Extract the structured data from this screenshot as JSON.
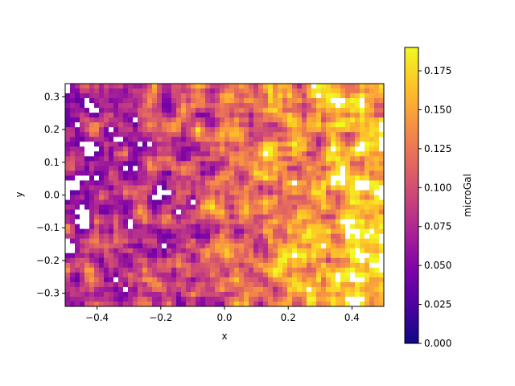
{
  "chart_data": {
    "type": "heatmap",
    "title": "",
    "xlabel": "x",
    "ylabel": "y",
    "xlim": [
      -0.5,
      0.5
    ],
    "ylim": [
      -0.34,
      0.34
    ],
    "x_ticks": [
      -0.4,
      -0.2,
      0.0,
      0.2,
      0.4
    ],
    "x_tick_labels": [
      "−0.4",
      "−0.2",
      "0.0",
      "0.2",
      "0.4"
    ],
    "y_ticks": [
      -0.3,
      -0.2,
      -0.1,
      0.0,
      0.1,
      0.2,
      0.3
    ],
    "y_tick_labels": [
      "−0.3",
      "−0.2",
      "−0.1",
      "0.0",
      "0.1",
      "0.2",
      "0.3"
    ],
    "grid": false,
    "colormap": "plasma",
    "colorbar": {
      "label": "microGal",
      "range": [
        0.0,
        0.19
      ],
      "ticks": [
        0.0,
        0.025,
        0.05,
        0.075,
        0.1,
        0.125,
        0.15,
        0.175
      ],
      "tick_labels": [
        "0.000",
        "0.025",
        "0.050",
        "0.075",
        "0.100",
        "0.125",
        "0.150",
        "0.175"
      ]
    },
    "trend": "noisy gravity field; values increase from left (about 0.00–0.10) to right (about 0.12–0.19), with white gaps where values fall outside the contour range"
  }
}
